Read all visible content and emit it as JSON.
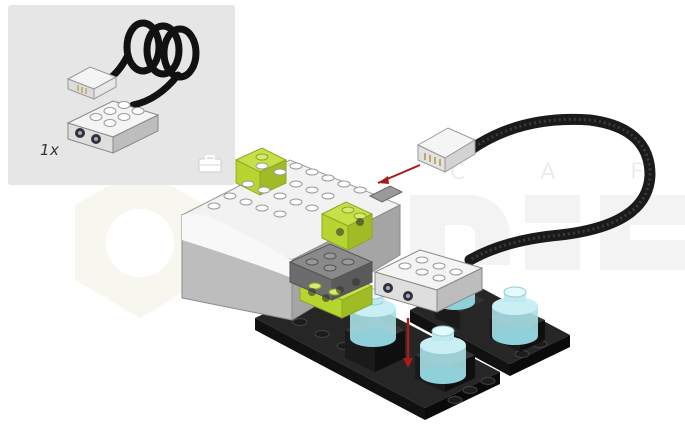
{
  "callout": {
    "quantity_label": "1x"
  },
  "watermark": {
    "letters": "C A F"
  },
  "colors": {
    "callout_bg": "#e6e6e6",
    "hub_white": "#f2f2f2",
    "hub_gray": "#bdbdbd",
    "lime": "#b7d531",
    "dark_gray": "#6c6c6c",
    "black_plate": "#1e1e1e",
    "trans_cyan": "#a9dfe6",
    "arrow_red": "#a81c1c",
    "cable": "#1a1a1a",
    "sensor_led": "#2e8b3a"
  },
  "icons": [
    "briefcase-icon"
  ]
}
